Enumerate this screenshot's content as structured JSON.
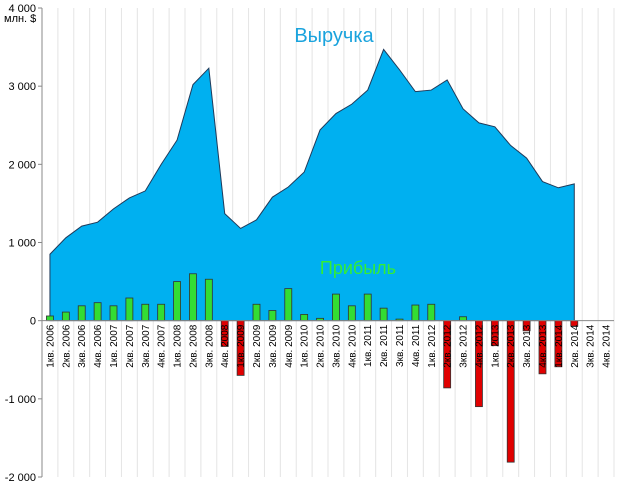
{
  "chart_data": {
    "type": "combo",
    "y_unit_label": "млн. $",
    "categories": [
      "1кв. 2006",
      "2кв. 2006",
      "3кв. 2006",
      "4кв. 2006",
      "1кв. 2007",
      "2кв. 2007",
      "3кв. 2007",
      "4кв. 2007",
      "1кв. 2008",
      "2кв. 2008",
      "3кв. 2008",
      "4кв. 2008",
      "1кв. 2009",
      "2кв. 2009",
      "3кв. 2009",
      "4кв. 2009",
      "1кв. 2010",
      "2кв. 2010",
      "3кв. 2010",
      "4кв. 2010",
      "1кв. 2011",
      "2кв. 2011",
      "3кв. 2011",
      "4кв. 2011",
      "1кв. 2012",
      "2кв. 2012",
      "3кв. 2012",
      "4кв. 2012",
      "1кв. 2013",
      "2кв. 2013",
      "3кв. 2013",
      "4кв. 2013",
      "1кв. 2014",
      "2кв. 2014",
      "3кв. 2014",
      "4кв. 2014"
    ],
    "series": [
      {
        "name": "Выручка",
        "chart_type": "area",
        "color": "#00b0f0",
        "label_color": "#1aa3dd",
        "values": [
          850,
          1060,
          1210,
          1260,
          1430,
          1570,
          1660,
          2000,
          2310,
          3020,
          3230,
          1370,
          1180,
          1290,
          1580,
          1710,
          1900,
          2440,
          2650,
          2770,
          2950,
          3470,
          3210,
          2930,
          2950,
          3080,
          2710,
          2530,
          2480,
          2240,
          2080,
          1780,
          1700,
          1750,
          null,
          null
        ]
      },
      {
        "name": "Прибыль",
        "chart_type": "bar",
        "color": "#33dd33",
        "negative_color": "#e00000",
        "label_color": "#33ee33",
        "values": [
          60,
          110,
          190,
          230,
          190,
          290,
          210,
          210,
          500,
          600,
          530,
          -330,
          -700,
          210,
          130,
          410,
          80,
          30,
          340,
          190,
          340,
          160,
          20,
          200,
          210,
          -860,
          50,
          -1100,
          -320,
          -1810,
          -130,
          -680,
          -590,
          -70,
          null,
          null
        ]
      }
    ],
    "ylim": [
      -2000,
      4000
    ],
    "yticks": [
      {
        "value": -2000,
        "label": "-2 000"
      },
      {
        "value": -1000,
        "label": "-1 000"
      },
      0,
      {
        "value": 1000,
        "label": "1 000"
      },
      {
        "value": 2000,
        "label": "2 000"
      },
      {
        "value": 3000,
        "label": "3 000"
      },
      {
        "value": 4000,
        "label": "4 000"
      }
    ],
    "x_grid": true
  }
}
